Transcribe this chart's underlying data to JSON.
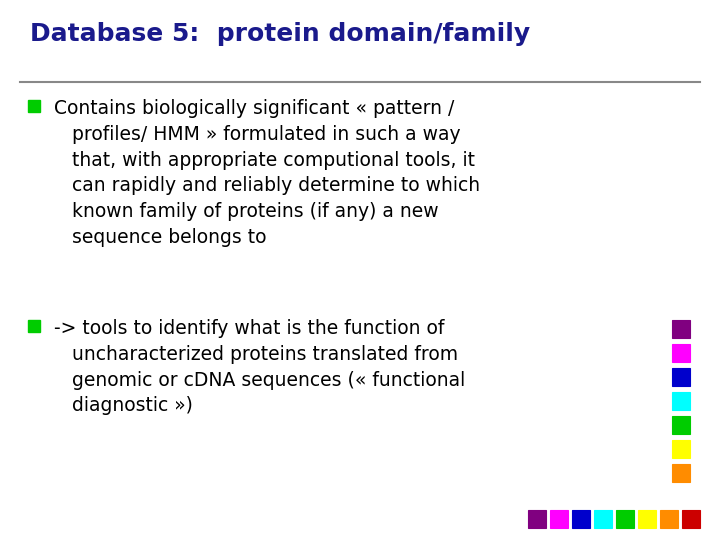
{
  "title": "Database 5:  protein domain/family",
  "title_color": "#1a1a8c",
  "title_fontsize": 18,
  "title_font": "Comic Sans MS",
  "bg_color": "#FFFFFF",
  "line_color": "#888888",
  "bullet_color": "#00CC00",
  "text_color": "#000000",
  "body_font": "Comic Sans MS",
  "body_fontsize": 13.5,
  "bullet1": " Contains biologically significant « pattern /\n    profiles/ HMM » formulated in such a way\n    that, with appropriate computional tools, it\n    can rapidly and reliably determine to which\n    known family of proteins (if any) a new\n    sequence belongs to",
  "bullet2": " -> tools to identify what is the function of\n    uncharacterized proteins translated from\n    genomic or cDNA sequences (« functional\n    diagnostic »)",
  "right_col_squares": [
    {
      "color": "#800080"
    },
    {
      "color": "#FF00FF"
    },
    {
      "color": "#0000CC"
    },
    {
      "color": "#00FFFF"
    },
    {
      "color": "#00CC00"
    },
    {
      "color": "#FFFF00"
    },
    {
      "color": "#FF8C00"
    }
  ],
  "bottom_row_squares": [
    {
      "color": "#800080"
    },
    {
      "color": "#FF00FF"
    },
    {
      "color": "#0000CC"
    },
    {
      "color": "#00FFFF"
    },
    {
      "color": "#00CC00"
    },
    {
      "color": "#FFFF00"
    },
    {
      "color": "#FF8C00"
    },
    {
      "color": "#CC0000"
    }
  ]
}
